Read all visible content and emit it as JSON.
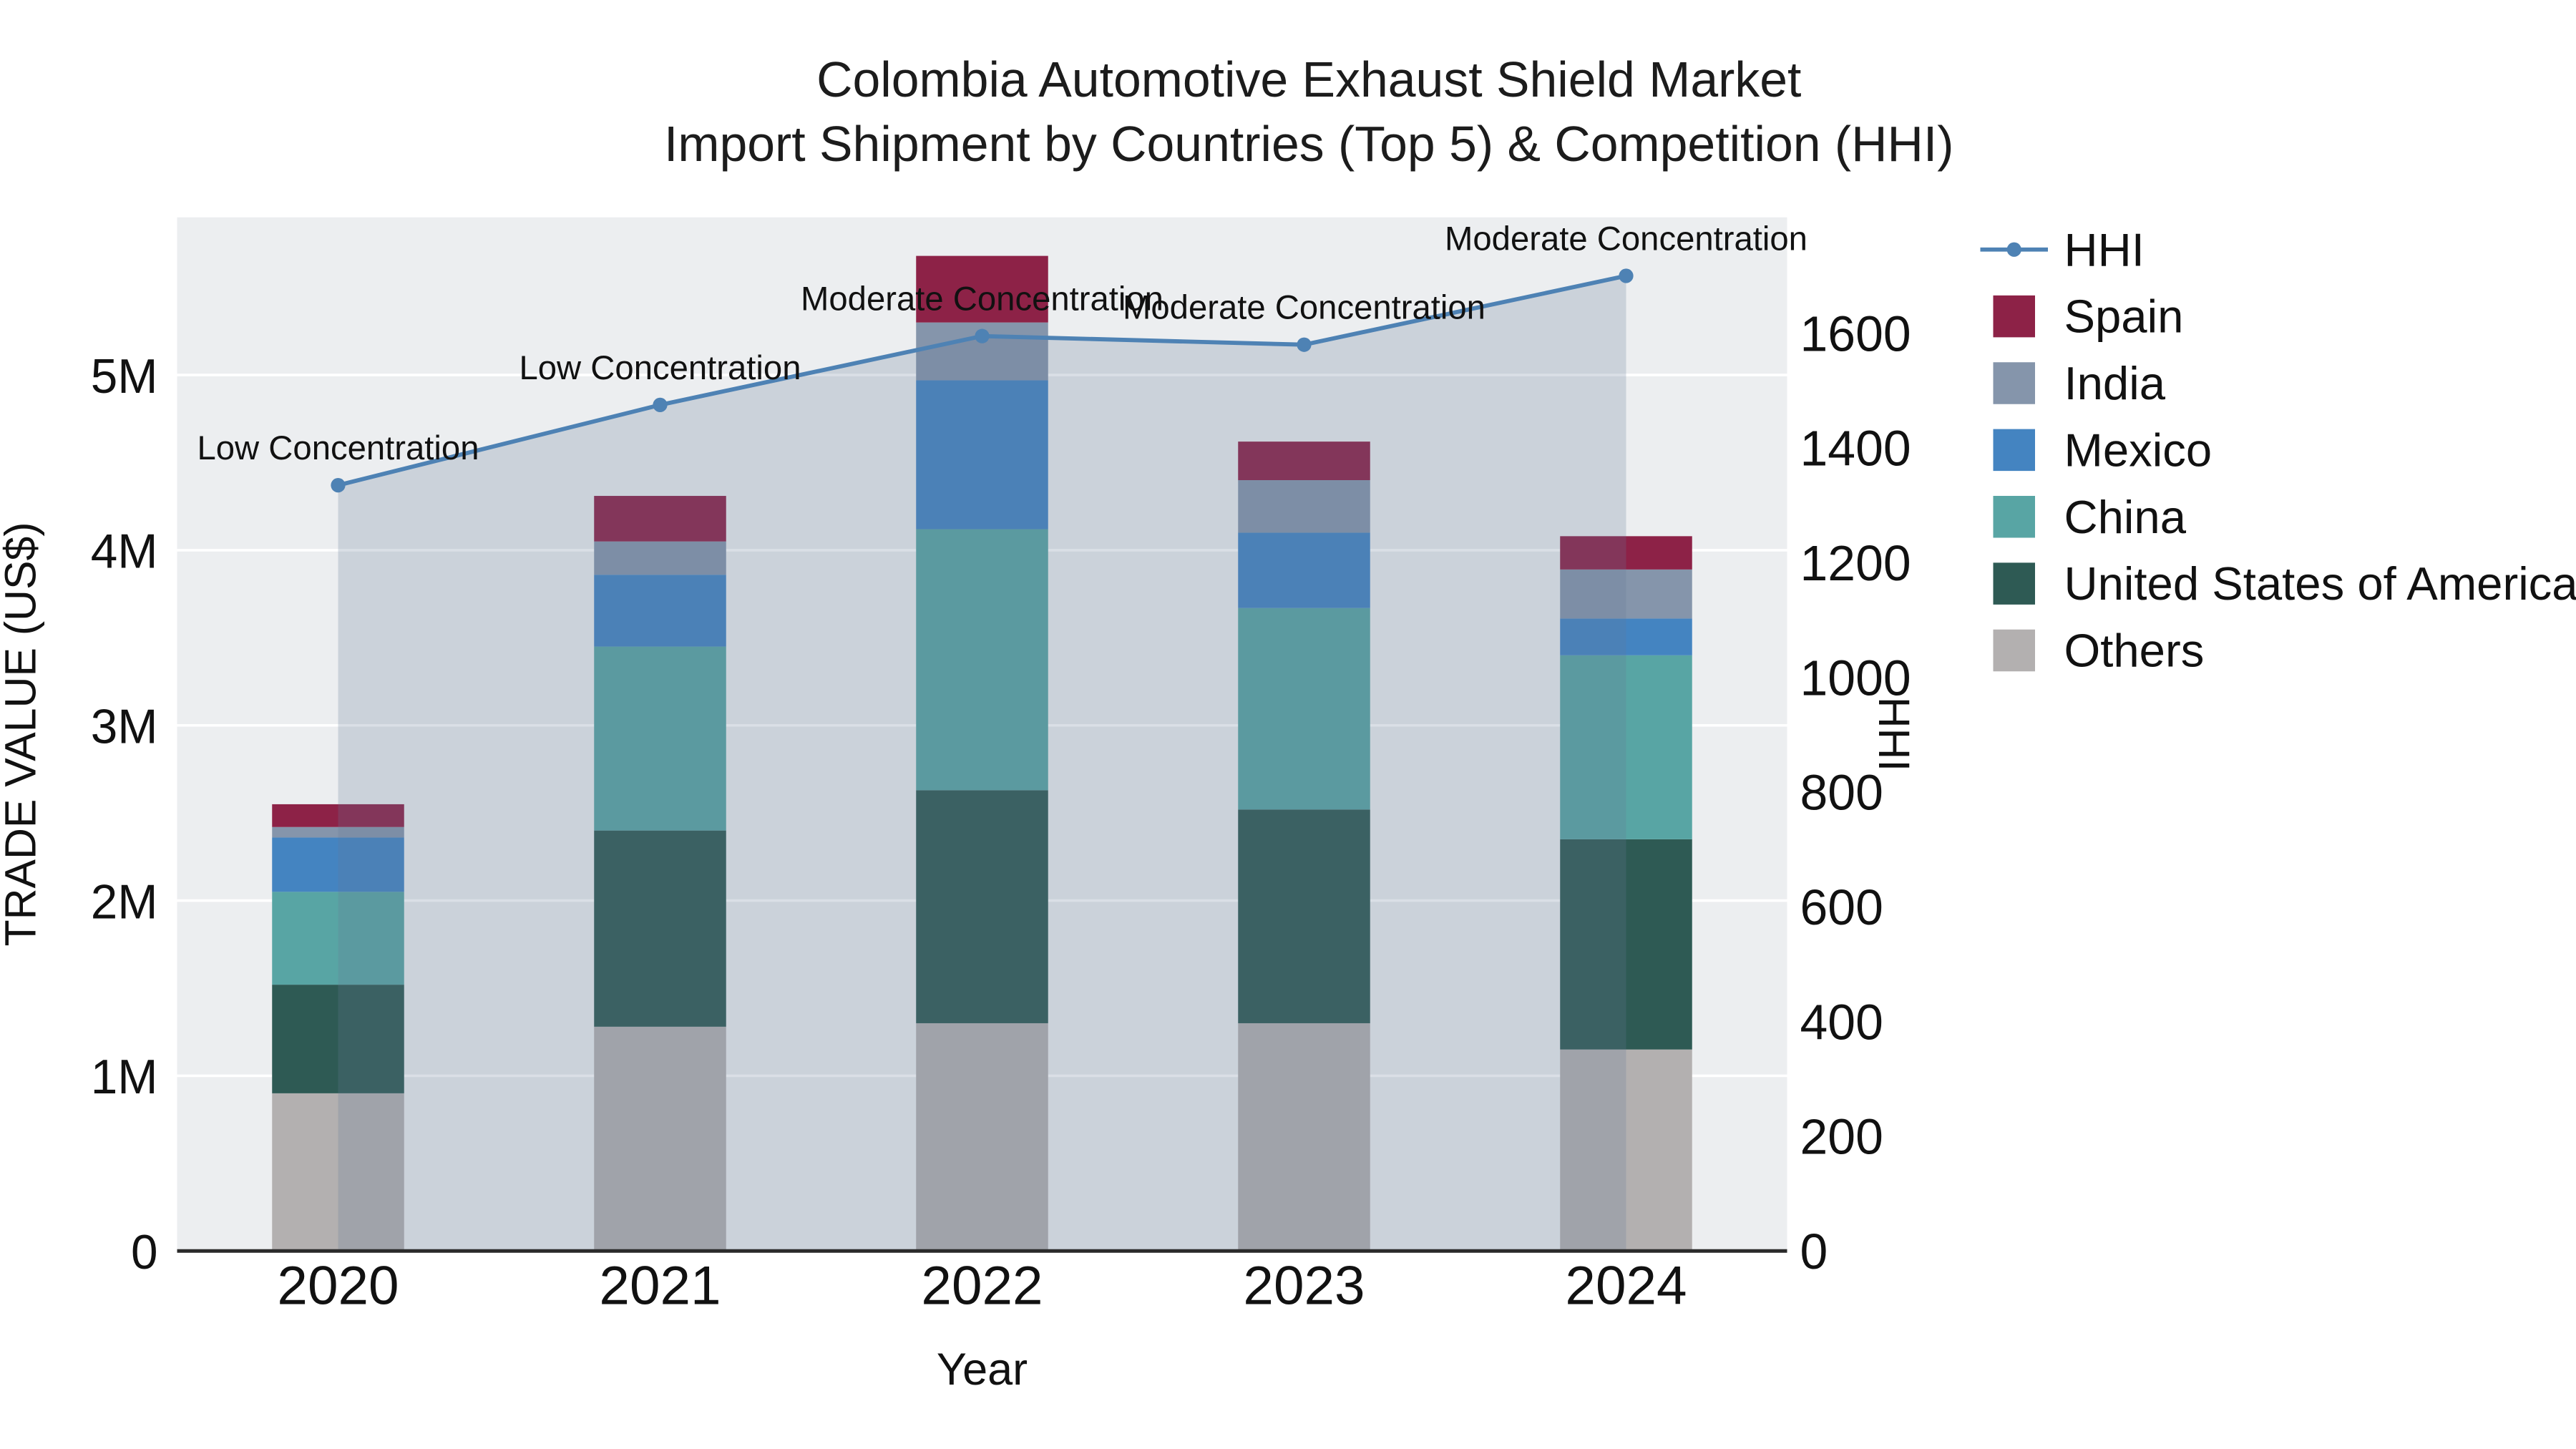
{
  "title": {
    "line1": "Colombia Automotive Exhaust Shield Market",
    "line2": "Import Shipment by Countries (Top 5) & Competition (HHI)"
  },
  "axes": {
    "x": {
      "title": "Year",
      "categories": [
        "2020",
        "2021",
        "2022",
        "2023",
        "2024"
      ]
    },
    "y_left": {
      "title": "TRADE VALUE (US$)",
      "max": 5900000,
      "ticks": [
        {
          "value": 0,
          "label": "0"
        },
        {
          "value": 1000000,
          "label": "1M"
        },
        {
          "value": 2000000,
          "label": "2M"
        },
        {
          "value": 3000000,
          "label": "3M"
        },
        {
          "value": 4000000,
          "label": "4M"
        },
        {
          "value": 5000000,
          "label": "5M"
        }
      ]
    },
    "y_right": {
      "title": "HHI",
      "max": 1802,
      "ticks": [
        {
          "value": 0,
          "label": "0"
        },
        {
          "value": 200,
          "label": "200"
        },
        {
          "value": 400,
          "label": "400"
        },
        {
          "value": 600,
          "label": "600"
        },
        {
          "value": 800,
          "label": "800"
        },
        {
          "value": 1000,
          "label": "1000"
        },
        {
          "value": 1200,
          "label": "1200"
        },
        {
          "value": 1400,
          "label": "1400"
        },
        {
          "value": 1600,
          "label": "1600"
        }
      ]
    }
  },
  "chart_data": {
    "type": "bar",
    "stacked": true,
    "categories": [
      "2020",
      "2021",
      "2022",
      "2023",
      "2024"
    ],
    "series": [
      {
        "name": "Others",
        "color": "#b3b0b0",
        "values": [
          900000,
          1280000,
          1300000,
          1300000,
          1150000
        ]
      },
      {
        "name": "United States of America",
        "color": "#2e5a54",
        "values": [
          620000,
          1120000,
          1330000,
          1220000,
          1200000
        ]
      },
      {
        "name": "China",
        "color": "#58a5a4",
        "values": [
          530000,
          1050000,
          1490000,
          1150000,
          1050000
        ]
      },
      {
        "name": "Mexico",
        "color": "#4484c1",
        "values": [
          310000,
          410000,
          850000,
          430000,
          210000
        ]
      },
      {
        "name": "India",
        "color": "#8595ab",
        "values": [
          60000,
          190000,
          330000,
          300000,
          280000
        ]
      },
      {
        "name": "Spain",
        "color": "#8d2247",
        "values": [
          130000,
          260000,
          380000,
          220000,
          190000
        ]
      }
    ],
    "line": {
      "name": "HHI",
      "color": "#4e82b4",
      "area_fill": "rgba(100,120,150,0.24)",
      "values": [
        1335,
        1475,
        1595,
        1580,
        1700
      ],
      "annotations": [
        "Low Concentration",
        "Low Concentration",
        "Moderate Concentration",
        "Moderate Concentration",
        "Moderate Concentration"
      ]
    },
    "legend_items": [
      {
        "label": "HHI",
        "color": "#4e82b4",
        "marker": "line"
      },
      {
        "label": "Spain",
        "color": "#8d2247",
        "marker": "square"
      },
      {
        "label": "India",
        "color": "#8595ab",
        "marker": "square"
      },
      {
        "label": "Mexico",
        "color": "#4484c1",
        "marker": "square"
      },
      {
        "label": "China",
        "color": "#58a5a4",
        "marker": "square"
      },
      {
        "label": "United States of America",
        "color": "#2e5a54",
        "marker": "square"
      },
      {
        "label": "Others",
        "color": "#b3b0b0",
        "marker": "square"
      }
    ],
    "plot_background": "#eceef0",
    "gridline_color": "#ffffff",
    "axis_line_color": "#2a2a2a",
    "text_color": "#111111"
  }
}
